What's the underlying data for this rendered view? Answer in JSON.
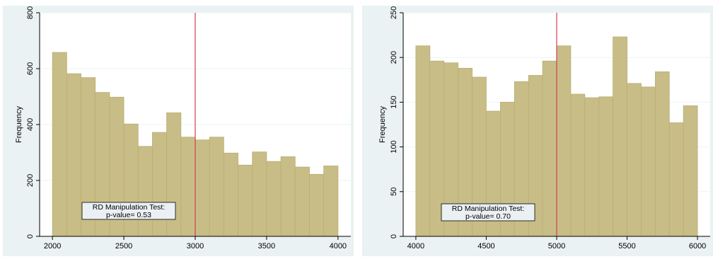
{
  "chart_data": [
    {
      "type": "bar",
      "subtype": "histogram",
      "bin_width": 100,
      "x": [
        2000,
        2100,
        2200,
        2300,
        2400,
        2500,
        2600,
        2700,
        2800,
        2900,
        3000,
        3100,
        3200,
        3300,
        3400,
        3500,
        3600,
        3700,
        3800,
        3900
      ],
      "values": [
        658,
        582,
        568,
        515,
        498,
        402,
        322,
        372,
        442,
        355,
        345,
        355,
        298,
        255,
        302,
        268,
        285,
        248,
        222,
        252
      ],
      "cutoff": 3000,
      "xlim": [
        2000,
        4000
      ],
      "ylim": [
        0,
        800
      ],
      "xticks": [
        "2000",
        "2500",
        "3000",
        "3500",
        "4000"
      ],
      "yticks": [
        "0",
        "200",
        "400",
        "600",
        "800"
      ],
      "ylabel": "Frequency",
      "xlabel": "",
      "annotation": [
        "RD Manipulation Test:",
        "p-value= 0.53"
      ],
      "colors": {
        "bar": "#c8bd86",
        "cutoff": "#d04050",
        "background": "#eaf2f3"
      }
    },
    {
      "type": "bar",
      "subtype": "histogram",
      "bin_width": 100,
      "x": [
        4000,
        4100,
        4200,
        4300,
        4400,
        4500,
        4600,
        4700,
        4800,
        4900,
        5000,
        5100,
        5200,
        5300,
        5400,
        5500,
        5600,
        5700,
        5800,
        5900
      ],
      "values": [
        213,
        196,
        194,
        188,
        178,
        140,
        150,
        173,
        180,
        196,
        213,
        159,
        155,
        156,
        223,
        171,
        167,
        184,
        127,
        146
      ],
      "cutoff": 5000,
      "xlim": [
        4000,
        6000
      ],
      "ylim": [
        0,
        250
      ],
      "xticks": [
        "4000",
        "4500",
        "5000",
        "5500",
        "6000"
      ],
      "yticks": [
        "0",
        "50",
        "100",
        "150",
        "200",
        "250"
      ],
      "ylabel": "Frequency",
      "xlabel": "",
      "annotation": [
        "RD Manipulation Test:",
        "p-value= 0.70"
      ],
      "colors": {
        "bar": "#c8bd86",
        "cutoff": "#d04050",
        "background": "#eaf2f3"
      }
    }
  ]
}
